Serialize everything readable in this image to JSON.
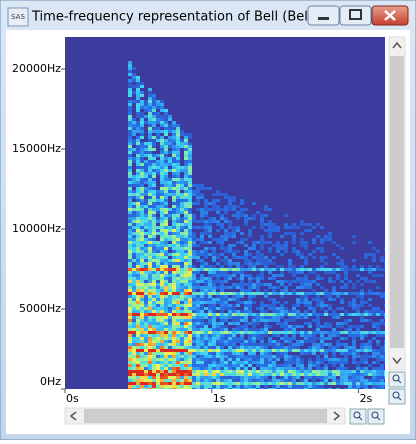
{
  "window": {
    "title": "Time-frequency representation of Bell (Bell)",
    "icon": "SAS"
  },
  "chart_data": {
    "type": "spectrogram",
    "xlim": [
      0,
      2.18
    ],
    "ylim": [
      0,
      22000
    ],
    "xticks": [
      {
        "value": 0,
        "label": "0s"
      },
      {
        "value": 1,
        "label": "1s"
      },
      {
        "value": 2,
        "label": "2s"
      }
    ],
    "yticks": [
      {
        "value": 0,
        "label": "0Hz"
      },
      {
        "value": 5000,
        "label": "5000Hz"
      },
      {
        "value": 10000,
        "label": "10000Hz"
      },
      {
        "value": 15000,
        "label": "15000Hz"
      },
      {
        "value": 20000,
        "label": "20000Hz"
      }
    ]
  }
}
